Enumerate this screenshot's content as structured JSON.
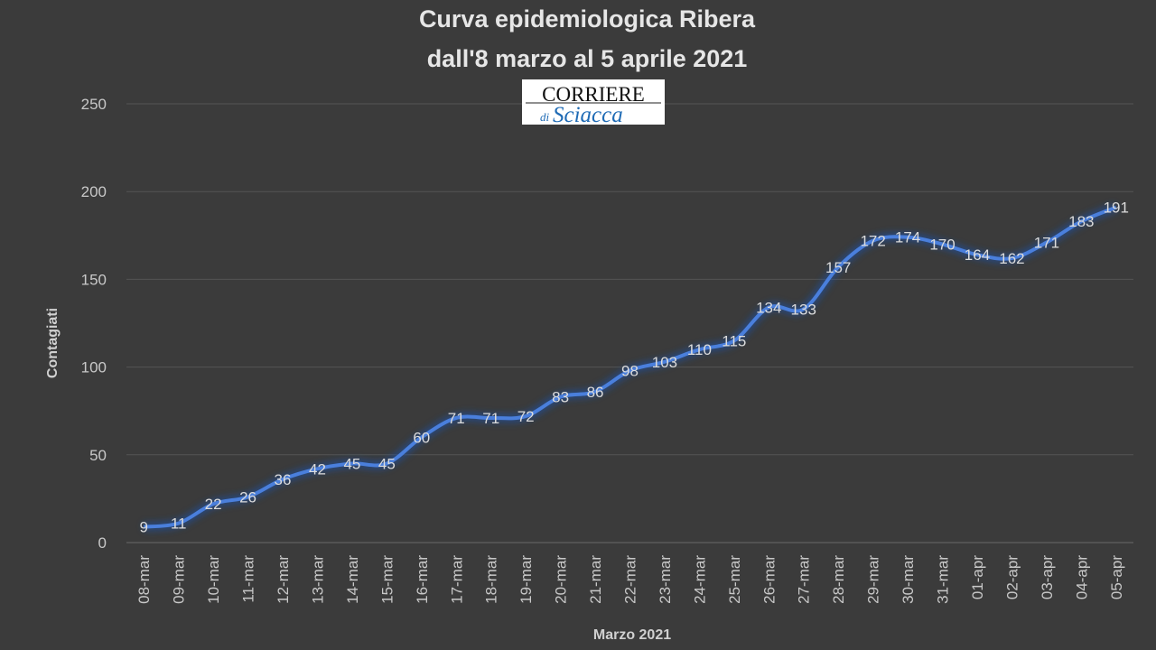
{
  "chart_data": {
    "type": "line",
    "title": [
      "Curva epidemiologica Ribera",
      "dall'8 marzo al 5  aprile 2021"
    ],
    "xlabel": "Marzo 2021",
    "ylabel": "Contagiati",
    "ylim": [
      0,
      250
    ],
    "yticks": [
      0,
      50,
      100,
      150,
      200,
      250
    ],
    "grid": "horizontal",
    "legend": "none",
    "line_color": "#4a7fdc",
    "background": "#3b3b3b",
    "categories": [
      "08-mar",
      "09-mar",
      "10-mar",
      "11-mar",
      "12-mar",
      "13-mar",
      "14-mar",
      "15-mar",
      "16-mar",
      "17-mar",
      "18-mar",
      "19-mar",
      "20-mar",
      "21-mar",
      "22-mar",
      "23-mar",
      "24-mar",
      "25-mar",
      "26-mar",
      "27-mar",
      "28-mar",
      "29-mar",
      "30-mar",
      "31-mar",
      "01-apr",
      "02-apr",
      "03-apr",
      "04-apr",
      "05-apr"
    ],
    "values": [
      9,
      11,
      22,
      26,
      36,
      42,
      45,
      45,
      60,
      71,
      71,
      72,
      83,
      86,
      98,
      103,
      110,
      115,
      134,
      133,
      157,
      172,
      174,
      170,
      164,
      162,
      171,
      183,
      191
    ],
    "data_labels": true
  },
  "logo": {
    "line1": "CORRIERE",
    "line2_small": "di",
    "line2": "Sciacca"
  }
}
